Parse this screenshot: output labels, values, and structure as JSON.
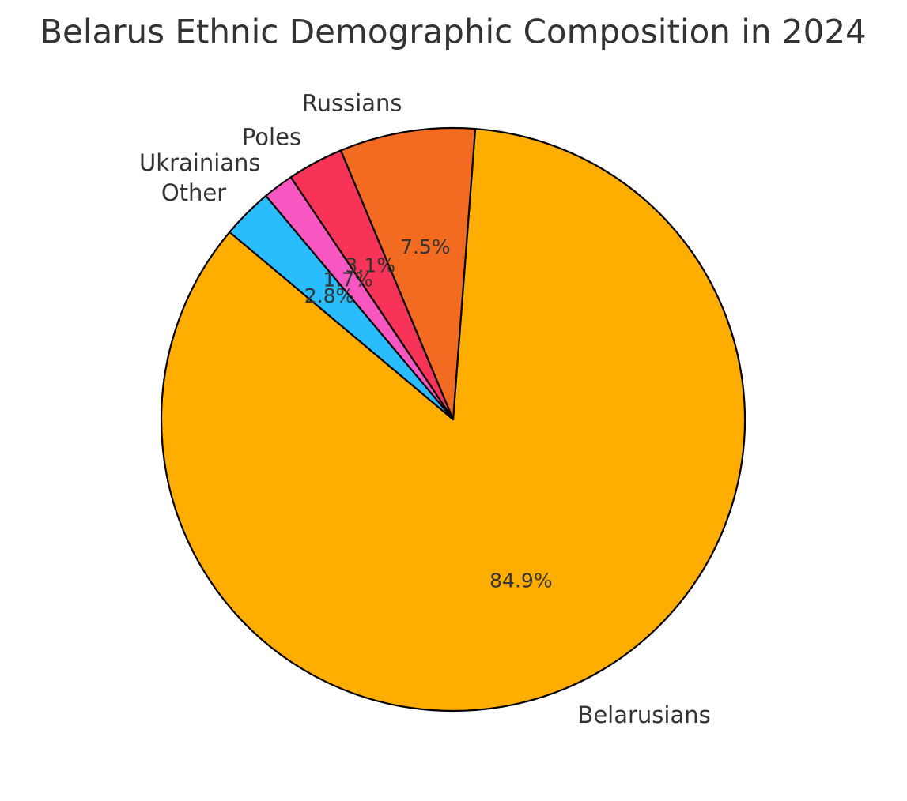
{
  "chart_data": {
    "type": "pie",
    "title": "Belarus Ethnic Demographic Composition in 2024",
    "categories": [
      "Belarusians",
      "Russians",
      "Poles",
      "Ukrainians",
      "Other"
    ],
    "values": [
      84.9,
      7.5,
      3.1,
      1.7,
      2.8
    ],
    "value_labels": [
      "84.9%",
      "7.5%",
      "3.1%",
      "1.7%",
      "2.8%"
    ],
    "colors": [
      "#ffad00",
      "#f26b21",
      "#f73357",
      "#f857c1",
      "#29bdfd"
    ]
  }
}
